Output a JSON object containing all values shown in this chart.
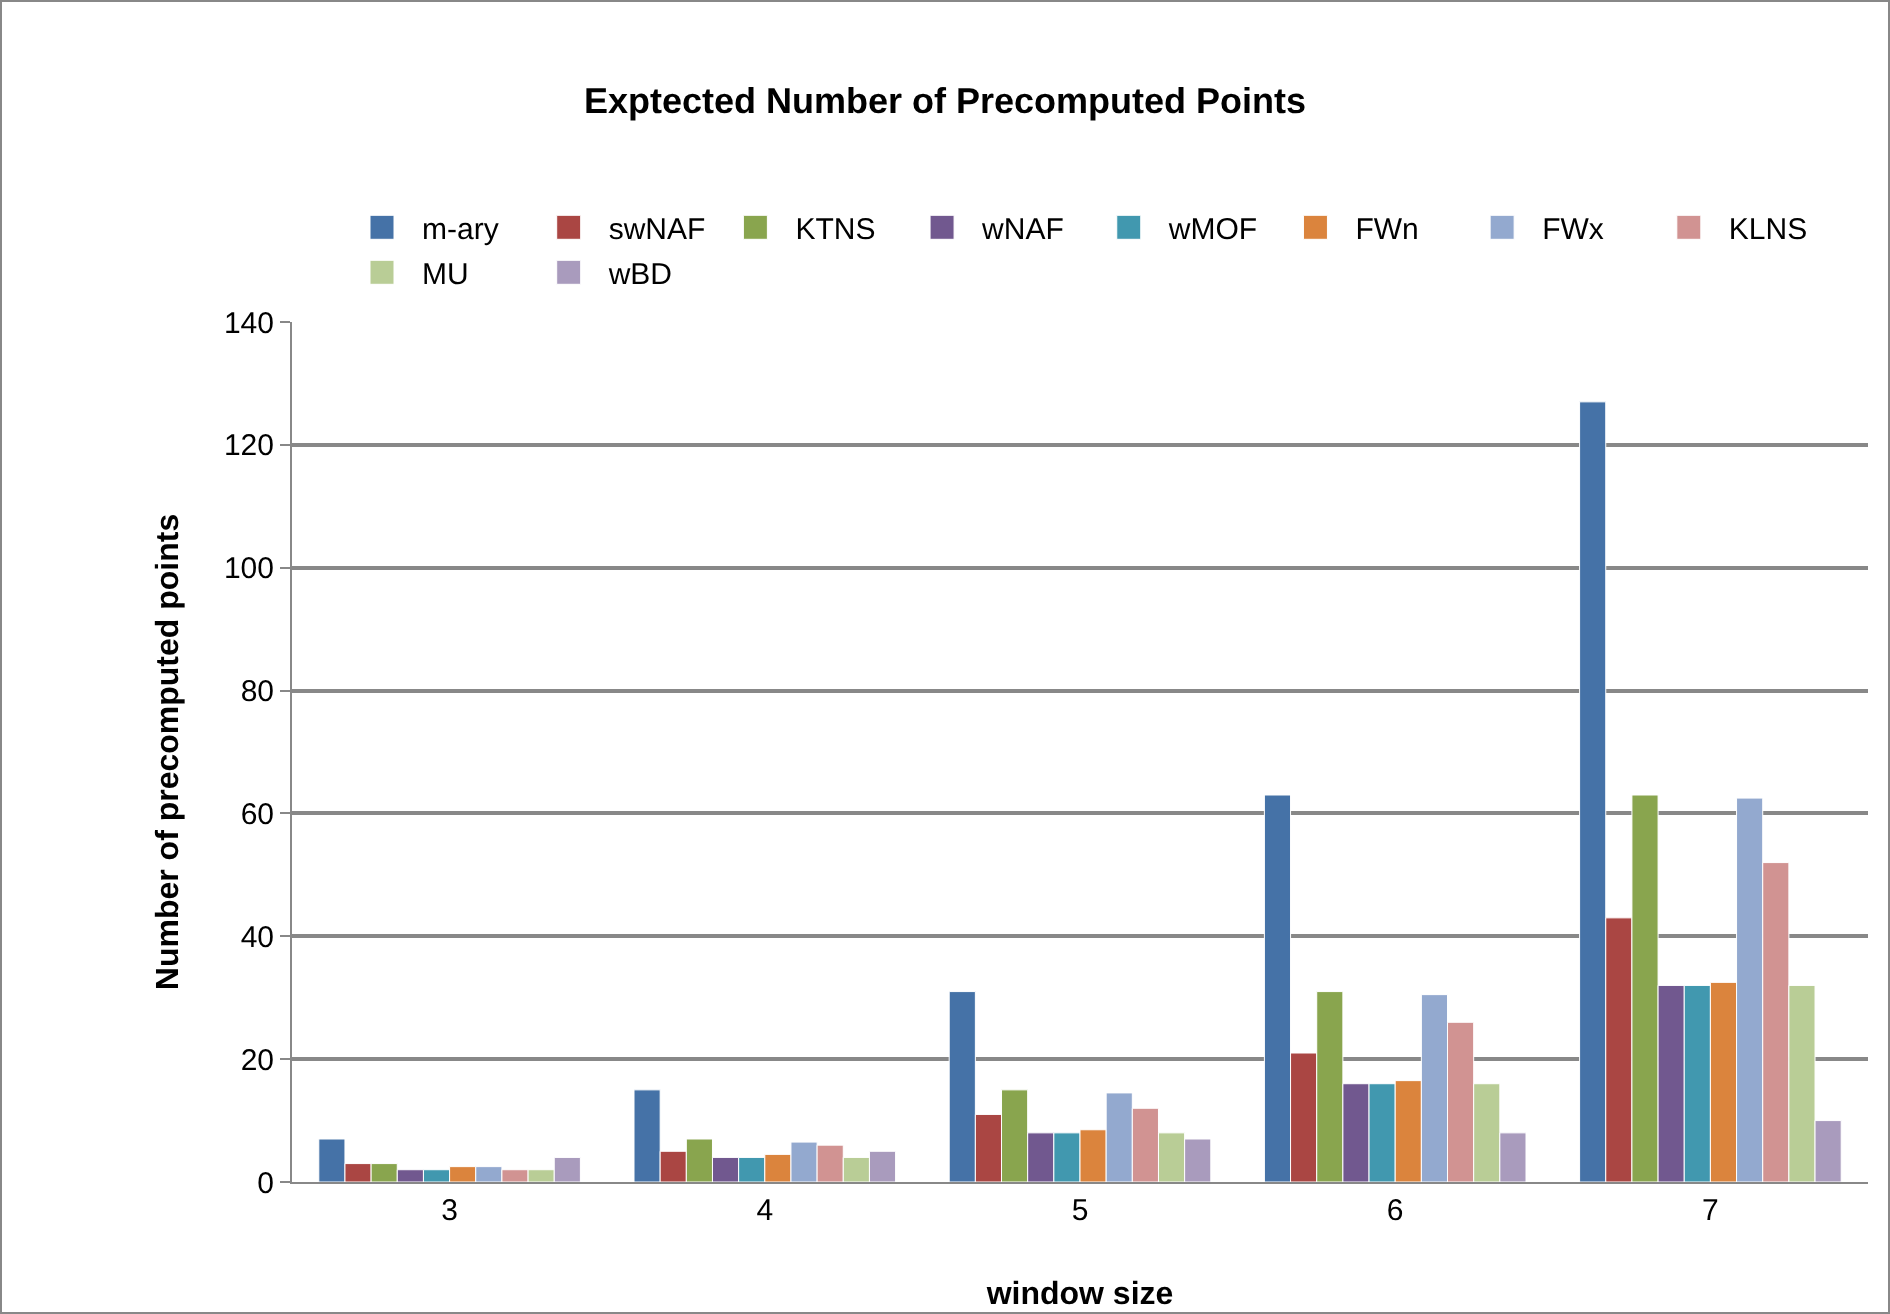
{
  "chart_data": {
    "type": "bar",
    "title": "Exptected Number of Precomputed Points",
    "xlabel": "window size",
    "ylabel": "Number of precomputed points",
    "categories": [
      "3",
      "4",
      "5",
      "6",
      "7"
    ],
    "series": [
      {
        "name": "m-ary",
        "color": "#4572a7",
        "values": [
          7,
          15,
          31,
          63,
          127
        ]
      },
      {
        "name": "swNAF",
        "color": "#aa4643",
        "values": [
          3,
          5,
          11,
          21,
          43
        ]
      },
      {
        "name": "KTNS",
        "color": "#89a54e",
        "values": [
          3,
          7,
          15,
          31,
          63
        ]
      },
      {
        "name": "wNAF",
        "color": "#71588f",
        "values": [
          2,
          4,
          8,
          16,
          32
        ]
      },
      {
        "name": "wMOF",
        "color": "#4198af",
        "values": [
          2,
          4,
          8,
          16,
          32
        ]
      },
      {
        "name": "FWn",
        "color": "#db843d",
        "values": [
          2.5,
          4.5,
          8.5,
          16.5,
          32.5
        ]
      },
      {
        "name": "FWx",
        "color": "#93a9cf",
        "values": [
          2.5,
          6.5,
          14.5,
          30.5,
          62.5
        ]
      },
      {
        "name": "KLNS",
        "color": "#d19392",
        "values": [
          2,
          6,
          12,
          26,
          52
        ]
      },
      {
        "name": "MU",
        "color": "#b9cd96",
        "values": [
          2,
          4,
          8,
          16,
          32
        ]
      },
      {
        "name": "wBD",
        "color": "#a99bbd",
        "values": [
          4,
          5,
          7,
          8,
          10
        ]
      }
    ],
    "ylim": [
      0,
      140
    ],
    "yticks": [
      0,
      20,
      40,
      60,
      80,
      100,
      120,
      140
    ],
    "grid": "y",
    "legend": "top"
  }
}
